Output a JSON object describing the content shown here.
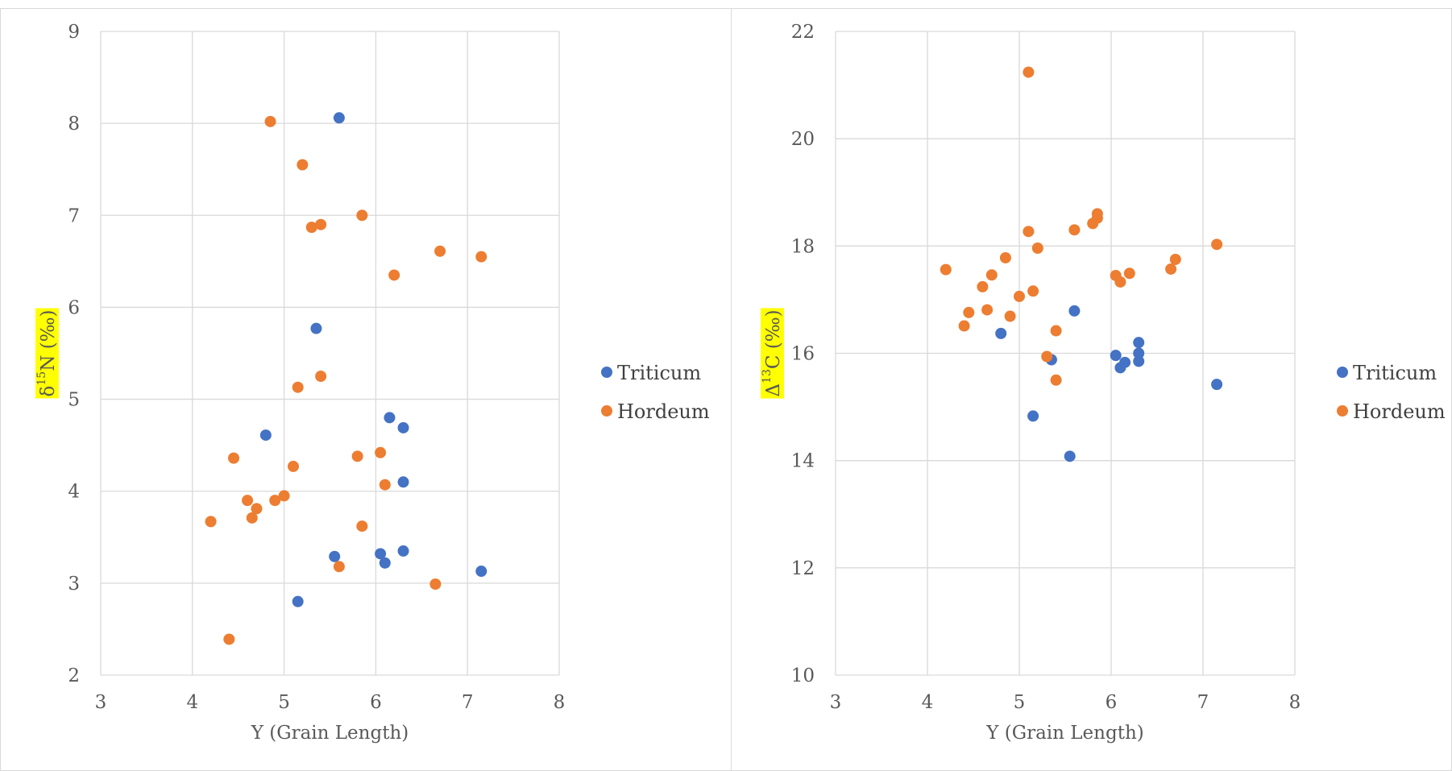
{
  "chart_data": [
    {
      "type": "scatter",
      "xlabel": "Y (Grain Length)",
      "ylabel_parts": [
        "δ",
        "15",
        "N (‰)"
      ],
      "ylabel_highlight": "#ffff00",
      "xlim": [
        3,
        8
      ],
      "ylim": [
        2,
        9
      ],
      "x_ticks": [
        3,
        4,
        5,
        6,
        7,
        8
      ],
      "y_ticks": [
        2,
        3,
        4,
        5,
        6,
        7,
        8,
        9
      ],
      "grid": true,
      "legend_position": "right",
      "series": [
        {
          "name": "Triticum",
          "color": "#4472c4",
          "points": [
            [
              5.6,
              8.06
            ],
            [
              5.35,
              5.77
            ],
            [
              4.8,
              4.61
            ],
            [
              6.15,
              4.8
            ],
            [
              6.3,
              4.69
            ],
            [
              6.3,
              4.1
            ],
            [
              5.55,
              3.29
            ],
            [
              6.05,
              3.32
            ],
            [
              6.1,
              3.22
            ],
            [
              6.3,
              3.35
            ],
            [
              7.15,
              3.13
            ],
            [
              5.15,
              2.8
            ]
          ]
        },
        {
          "name": "Hordeum",
          "color": "#ed7d31",
          "points": [
            [
              4.85,
              8.02
            ],
            [
              5.2,
              7.55
            ],
            [
              5.3,
              6.87
            ],
            [
              5.4,
              6.9
            ],
            [
              5.85,
              7.0
            ],
            [
              6.7,
              6.61
            ],
            [
              7.15,
              6.55
            ],
            [
              6.2,
              6.35
            ],
            [
              5.15,
              5.13
            ],
            [
              5.4,
              5.25
            ],
            [
              4.45,
              4.36
            ],
            [
              5.1,
              4.27
            ],
            [
              5.8,
              4.38
            ],
            [
              6.05,
              4.42
            ],
            [
              6.1,
              4.07
            ],
            [
              4.6,
              3.9
            ],
            [
              4.7,
              3.81
            ],
            [
              4.65,
              3.71
            ],
            [
              4.9,
              3.9
            ],
            [
              5.0,
              3.95
            ],
            [
              4.2,
              3.67
            ],
            [
              5.85,
              3.62
            ],
            [
              5.6,
              3.18
            ],
            [
              6.65,
              2.99
            ],
            [
              4.4,
              2.39
            ]
          ]
        }
      ]
    },
    {
      "type": "scatter",
      "xlabel": "Y (Grain Length)",
      "ylabel_parts": [
        "Δ",
        "13",
        "C (‰)"
      ],
      "ylabel_highlight": "#ffff00",
      "xlim": [
        3,
        8
      ],
      "ylim": [
        10,
        22
      ],
      "x_ticks": [
        3,
        4,
        5,
        6,
        7,
        8
      ],
      "y_ticks": [
        10,
        12,
        14,
        16,
        18,
        20,
        22
      ],
      "grid": true,
      "legend_position": "right",
      "series": [
        {
          "name": "Triticum",
          "color": "#4472c4",
          "points": [
            [
              4.8,
              16.37
            ],
            [
              5.35,
              15.88
            ],
            [
              5.6,
              16.79
            ],
            [
              5.15,
              14.83
            ],
            [
              5.55,
              14.08
            ],
            [
              6.05,
              15.96
            ],
            [
              6.1,
              15.73
            ],
            [
              6.15,
              15.83
            ],
            [
              6.3,
              16.2
            ],
            [
              6.3,
              16.0
            ],
            [
              6.3,
              15.85
            ],
            [
              7.15,
              15.42
            ]
          ]
        },
        {
          "name": "Hordeum",
          "color": "#ed7d31",
          "points": [
            [
              5.1,
              21.24
            ],
            [
              4.2,
              17.56
            ],
            [
              4.4,
              16.51
            ],
            [
              4.45,
              16.76
            ],
            [
              4.6,
              17.24
            ],
            [
              4.65,
              16.81
            ],
            [
              4.7,
              17.46
            ],
            [
              4.85,
              17.78
            ],
            [
              4.9,
              16.69
            ],
            [
              5.0,
              17.06
            ],
            [
              5.1,
              18.27
            ],
            [
              5.15,
              17.16
            ],
            [
              5.2,
              17.96
            ],
            [
              5.3,
              15.94
            ],
            [
              5.4,
              16.42
            ],
            [
              5.4,
              15.5
            ],
            [
              5.6,
              18.3
            ],
            [
              5.8,
              18.42
            ],
            [
              5.85,
              18.52
            ],
            [
              5.85,
              18.6
            ],
            [
              6.05,
              17.45
            ],
            [
              6.1,
              17.33
            ],
            [
              6.2,
              17.49
            ],
            [
              6.65,
              17.57
            ],
            [
              6.7,
              17.75
            ],
            [
              7.15,
              18.03
            ]
          ]
        }
      ]
    }
  ]
}
